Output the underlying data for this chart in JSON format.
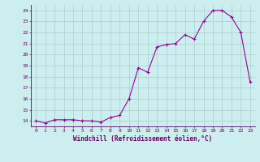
{
  "x": [
    0,
    1,
    2,
    3,
    4,
    5,
    6,
    7,
    8,
    9,
    10,
    11,
    12,
    13,
    14,
    15,
    16,
    17,
    18,
    19,
    20,
    21,
    22,
    23
  ],
  "y": [
    14.0,
    13.8,
    14.1,
    14.1,
    14.1,
    14.0,
    14.0,
    13.9,
    14.3,
    14.5,
    16.0,
    18.8,
    18.4,
    20.7,
    20.9,
    21.0,
    21.8,
    21.4,
    23.0,
    24.0,
    24.0,
    23.4,
    22.0,
    17.5
  ],
  "line_color": "#990099",
  "marker": "+",
  "xlabel": "Windchill (Refroidissement éolien,°C)",
  "ylim": [
    13.5,
    24.5
  ],
  "xlim": [
    -0.5,
    23.5
  ],
  "yticks": [
    14,
    15,
    16,
    17,
    18,
    19,
    20,
    21,
    22,
    23,
    24
  ],
  "xticks": [
    0,
    1,
    2,
    3,
    4,
    5,
    6,
    7,
    8,
    9,
    10,
    11,
    12,
    13,
    14,
    15,
    16,
    17,
    18,
    19,
    20,
    21,
    22,
    23
  ],
  "bg_color": "#cceeee",
  "grid_color": "#aacccc",
  "label_color": "#660066"
}
